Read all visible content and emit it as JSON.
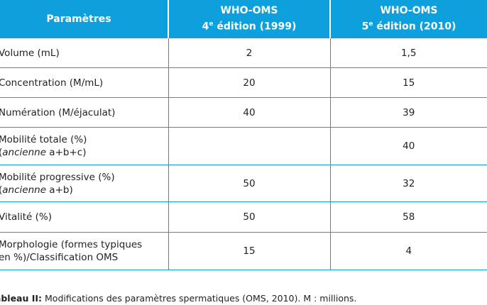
{
  "table": {
    "headers": {
      "param": "Paramètres",
      "col4": {
        "line1": "WHO-OMS",
        "ed_num": "4",
        "ed_sup": "e",
        "ed_rest": " édition (1999)"
      },
      "col5": {
        "line1": "WHO-OMS",
        "ed_num": "5",
        "ed_sup": "e",
        "ed_rest": " édition (2010)"
      }
    },
    "rows": [
      {
        "label": "Volume (mL)",
        "v4": "2",
        "v5": "1,5"
      },
      {
        "label": "Concentration (M/mL)",
        "v4": "20",
        "v5": "15"
      },
      {
        "label": "Numération (M/éjaculat)",
        "v4": "40",
        "v5": "39"
      },
      {
        "label": "Mobilité totale (%)",
        "label2_it": "ancienne",
        "label2_rest": " a+b+c)",
        "label2_open": "(",
        "v4": "",
        "v5": "40"
      },
      {
        "label": "Mobilité progressive (%)",
        "label2_it": "ancienne",
        "label2_rest": " a+b)",
        "label2_open": "(",
        "v4": "50",
        "v5": "32"
      },
      {
        "label": "Vitalité (%)",
        "v4": "50",
        "v5": "58"
      },
      {
        "label": "Morphologie (formes typiques",
        "label2": "en %)/Classification OMS",
        "v4": "15",
        "v5": "4"
      }
    ]
  },
  "caption": {
    "bold": "Tableau II:",
    "text": " Modifications des paramètres spermatiques (OMS, 2010). M : millions."
  },
  "colors": {
    "header_bg": "#0ea0dd",
    "border": "#0ea0dd"
  }
}
